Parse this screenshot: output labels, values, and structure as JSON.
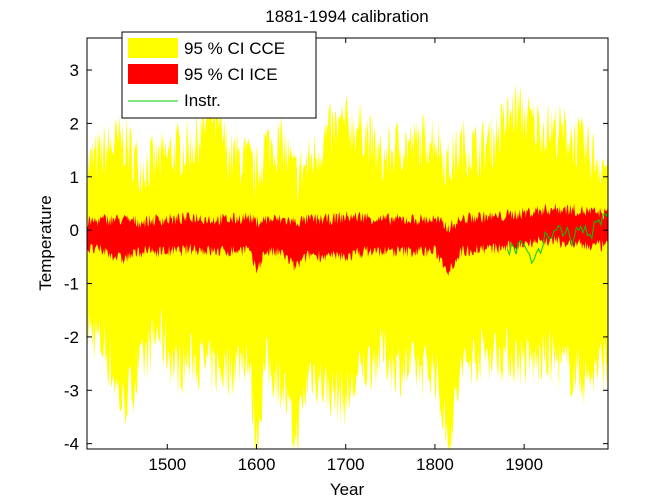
{
  "chart_data": {
    "type": "area",
    "title": "1881-1994 calibration",
    "xlabel": "Year",
    "ylabel": "Temperature",
    "xlim": [
      1410,
      1994
    ],
    "ylim": [
      -4.1,
      3.6
    ],
    "xticks": [
      1500,
      1600,
      1700,
      1800,
      1900
    ],
    "yticks": [
      -4,
      -3,
      -2,
      -1,
      0,
      1,
      2,
      3
    ],
    "grid": false,
    "legend_placement": "top-left",
    "series": [
      {
        "name": "95 % CI CCE",
        "kind": "band",
        "color": "#ffff00",
        "x": [
          1410,
          1430,
          1450,
          1470,
          1490,
          1510,
          1530,
          1550,
          1570,
          1590,
          1600,
          1610,
          1630,
          1643,
          1660,
          1680,
          1700,
          1720,
          1740,
          1760,
          1780,
          1800,
          1815,
          1830,
          1850,
          1870,
          1890,
          1910,
          1930,
          1950,
          1970,
          1994
        ],
        "upper": [
          1.2,
          1.5,
          1.7,
          1.2,
          1.3,
          1.5,
          1.6,
          2.2,
          1.4,
          1.3,
          1.0,
          1.6,
          1.6,
          1.0,
          1.3,
          1.8,
          2.0,
          1.9,
          1.3,
          1.6,
          1.6,
          1.8,
          1.2,
          1.6,
          1.5,
          1.8,
          2.3,
          2.0,
          1.9,
          1.8,
          1.5,
          1.2
        ],
        "lower": [
          -1.8,
          -2.2,
          -3.3,
          -2.6,
          -1.9,
          -2.6,
          -2.4,
          -2.6,
          -2.6,
          -2.3,
          -4.0,
          -2.5,
          -2.9,
          -4.0,
          -2.6,
          -3.0,
          -3.2,
          -2.6,
          -2.3,
          -2.6,
          -2.6,
          -2.6,
          -4.0,
          -2.6,
          -2.3,
          -2.3,
          -2.4,
          -2.5,
          -2.4,
          -2.6,
          -2.8,
          -2.4
        ]
      },
      {
        "name": "95 % CI ICE",
        "kind": "band",
        "color": "#ff0000",
        "x": [
          1410,
          1430,
          1450,
          1470,
          1490,
          1510,
          1530,
          1550,
          1570,
          1590,
          1600,
          1610,
          1630,
          1643,
          1660,
          1680,
          1700,
          1720,
          1740,
          1760,
          1780,
          1800,
          1815,
          1830,
          1850,
          1870,
          1890,
          1910,
          1930,
          1950,
          1970,
          1994
        ],
        "upper": [
          0.15,
          0.2,
          0.2,
          0.15,
          0.2,
          0.2,
          0.25,
          0.2,
          0.2,
          0.25,
          0.15,
          0.2,
          0.2,
          0.15,
          0.2,
          0.2,
          0.25,
          0.25,
          0.2,
          0.2,
          0.2,
          0.2,
          0.05,
          0.2,
          0.25,
          0.25,
          0.3,
          0.35,
          0.4,
          0.4,
          0.35,
          0.3
        ],
        "lower": [
          -0.35,
          -0.4,
          -0.55,
          -0.4,
          -0.4,
          -0.4,
          -0.35,
          -0.4,
          -0.4,
          -0.35,
          -0.75,
          -0.4,
          -0.45,
          -0.7,
          -0.45,
          -0.5,
          -0.5,
          -0.4,
          -0.4,
          -0.4,
          -0.4,
          -0.4,
          -0.75,
          -0.4,
          -0.35,
          -0.35,
          -0.3,
          -0.2,
          -0.2,
          -0.25,
          -0.3,
          -0.3
        ]
      },
      {
        "name": "Instr.",
        "kind": "line",
        "color": "#00cc00",
        "x": [
          1881,
          1886,
          1891,
          1896,
          1901,
          1906,
          1911,
          1916,
          1921,
          1926,
          1931,
          1936,
          1941,
          1946,
          1951,
          1956,
          1961,
          1966,
          1971,
          1976,
          1981,
          1986,
          1991,
          1994
        ],
        "y": [
          -0.35,
          -0.25,
          -0.45,
          -0.2,
          -0.3,
          -0.45,
          -0.55,
          -0.35,
          -0.3,
          -0.1,
          -0.15,
          0.0,
          0.05,
          -0.05,
          -0.1,
          -0.15,
          0.0,
          -0.05,
          -0.1,
          -0.15,
          0.15,
          0.1,
          0.3,
          0.35
        ]
      }
    ]
  }
}
